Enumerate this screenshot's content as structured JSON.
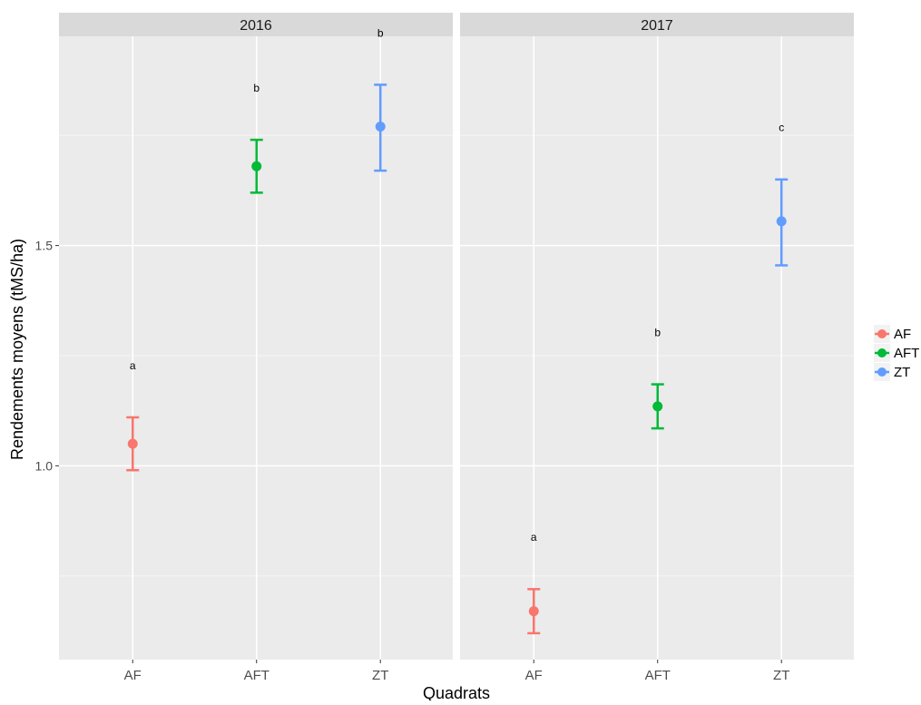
{
  "chart_data": {
    "type": "scatter",
    "subtype": "point-with-error-bars, faceted",
    "xlabel": "Quadrats",
    "ylabel": "Rendements moyens (tMS/ha)",
    "categories": [
      "AF",
      "AFT",
      "ZT"
    ],
    "ylim": [
      0.56,
      1.975
    ],
    "y_ticks": [
      1.0,
      1.5
    ],
    "y_tick_labels": [
      "1.0",
      "1.5"
    ],
    "grid": true,
    "legend_position": "right",
    "legend": [
      {
        "label": "AF",
        "color": "#F8766D"
      },
      {
        "label": "AFT",
        "color": "#00BA38"
      },
      {
        "label": "ZT",
        "color": "#619CFF"
      }
    ],
    "facets": [
      {
        "title": "2016",
        "points": [
          {
            "category": "AF",
            "value": 1.05,
            "ymin": 0.99,
            "ymax": 1.11,
            "label": "a"
          },
          {
            "category": "AFT",
            "value": 1.68,
            "ymin": 1.62,
            "ymax": 1.74,
            "label": "b"
          },
          {
            "category": "ZT",
            "value": 1.77,
            "ymin": 1.67,
            "ymax": 1.865,
            "label": "b"
          }
        ]
      },
      {
        "title": "2017",
        "points": [
          {
            "category": "AF",
            "value": 0.67,
            "ymin": 0.62,
            "ymax": 0.72,
            "label": "a"
          },
          {
            "category": "AFT",
            "value": 1.135,
            "ymin": 1.085,
            "ymax": 1.185,
            "label": "b"
          },
          {
            "category": "ZT",
            "value": 1.555,
            "ymin": 1.455,
            "ymax": 1.65,
            "label": "c"
          }
        ]
      }
    ]
  }
}
